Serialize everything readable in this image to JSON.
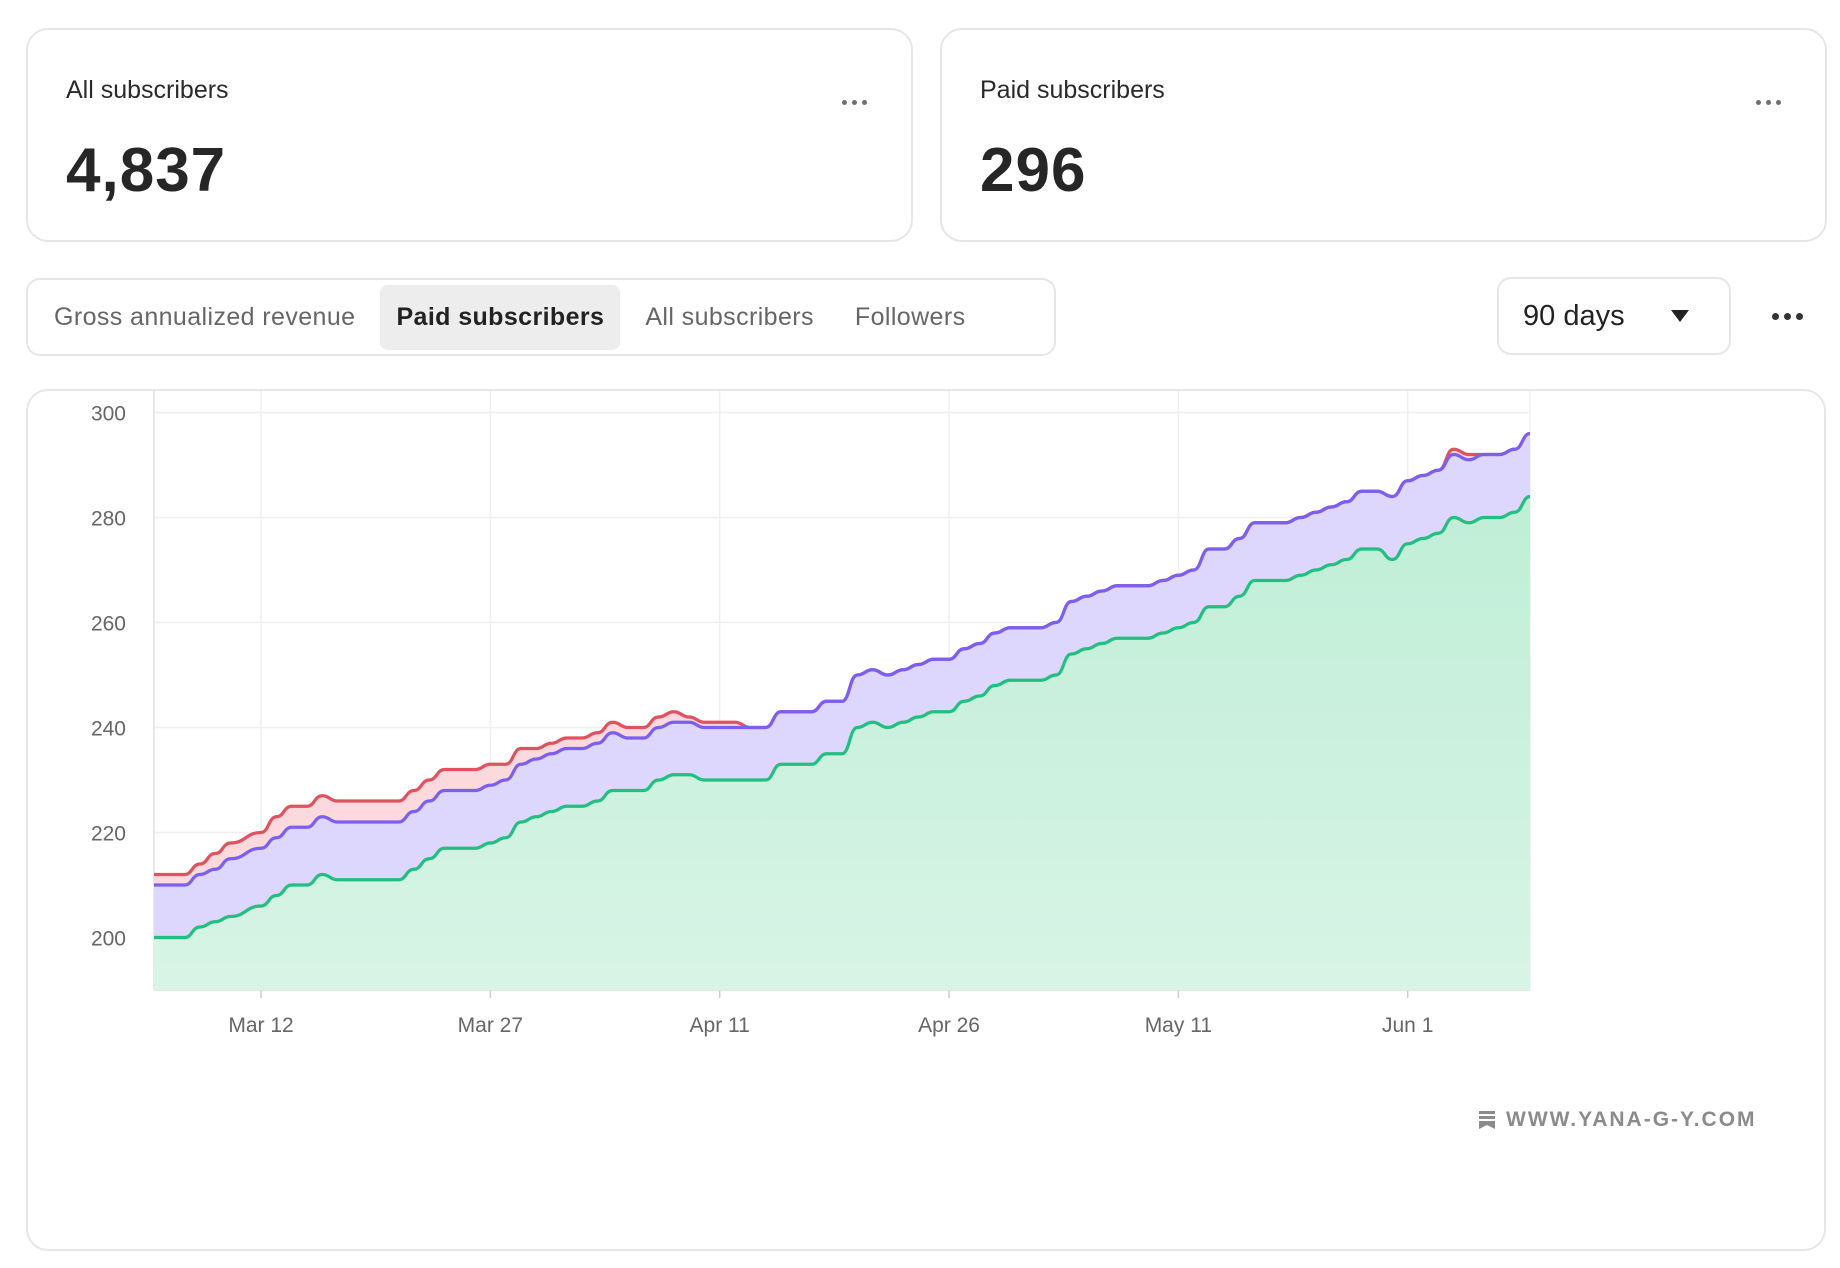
{
  "cards": [
    {
      "label": "All subscribers",
      "value": "4,837"
    },
    {
      "label": "Paid subscribers",
      "value": "296"
    }
  ],
  "tabs": [
    {
      "label": "Gross annualized revenue",
      "active": false
    },
    {
      "label": "Paid subscribers",
      "active": true
    },
    {
      "label": "All subscribers",
      "active": false
    },
    {
      "label": "Followers",
      "active": false
    }
  ],
  "range": {
    "label": "90 days"
  },
  "watermark": "WWW.YANA-G-Y.COM",
  "colors": {
    "red": "#e05260",
    "purple": "#7b5ff0",
    "green": "#22bf80"
  },
  "chart_data": {
    "type": "area",
    "x_ticks": [
      "Mar 12",
      "Mar 27",
      "Apr 11",
      "Apr 26",
      "May 11",
      "Jun 1"
    ],
    "ylim": [
      190,
      310
    ],
    "y_ticks": [
      200,
      220,
      240,
      260,
      280,
      300
    ],
    "grid": true,
    "series": [
      {
        "values": [
          [
            0,
            212
          ],
          [
            2,
            212
          ],
          [
            3,
            214
          ],
          [
            4,
            216
          ],
          [
            5,
            218
          ],
          [
            7,
            220
          ],
          [
            8,
            223
          ],
          [
            9,
            225
          ],
          [
            10,
            225
          ],
          [
            11,
            227
          ],
          [
            12,
            226
          ],
          [
            16,
            226
          ],
          [
            17,
            228
          ],
          [
            18,
            230
          ],
          [
            19,
            232
          ],
          [
            21,
            232
          ],
          [
            22,
            233
          ],
          [
            23,
            233
          ],
          [
            24,
            236
          ],
          [
            25,
            236
          ],
          [
            26,
            237
          ],
          [
            27,
            238
          ],
          [
            28,
            238
          ],
          [
            29,
            239
          ],
          [
            30,
            241
          ],
          [
            31,
            240
          ],
          [
            32,
            240
          ],
          [
            33,
            242
          ],
          [
            34,
            243
          ],
          [
            35,
            242
          ],
          [
            36,
            241
          ],
          [
            38,
            241
          ],
          [
            39,
            240
          ],
          [
            40,
            240
          ],
          [
            41,
            243
          ],
          [
            42,
            243
          ],
          [
            43,
            243
          ],
          [
            44,
            245
          ],
          [
            45,
            245
          ],
          [
            46,
            250
          ],
          [
            47,
            251
          ],
          [
            48,
            250
          ],
          [
            49,
            251
          ],
          [
            50,
            252
          ],
          [
            51,
            253
          ],
          [
            52,
            253
          ],
          [
            53,
            255
          ],
          [
            54,
            256
          ],
          [
            55,
            258
          ],
          [
            56,
            259
          ],
          [
            57,
            259
          ],
          [
            58,
            259
          ],
          [
            59,
            260
          ],
          [
            60,
            264
          ],
          [
            61,
            265
          ],
          [
            62,
            266
          ],
          [
            63,
            267
          ],
          [
            64,
            267
          ],
          [
            65,
            267
          ],
          [
            66,
            268
          ],
          [
            67,
            269
          ],
          [
            68,
            270
          ],
          [
            69,
            274
          ],
          [
            70,
            274
          ],
          [
            71,
            276
          ],
          [
            72,
            279
          ],
          [
            73,
            279
          ],
          [
            74,
            279
          ],
          [
            75,
            280
          ],
          [
            76,
            281
          ],
          [
            77,
            282
          ],
          [
            78,
            283
          ],
          [
            79,
            285
          ],
          [
            80,
            285
          ],
          [
            81,
            284
          ],
          [
            82,
            287
          ],
          [
            83,
            288
          ],
          [
            84,
            289
          ],
          [
            85,
            293
          ],
          [
            86,
            292
          ],
          [
            87,
            292
          ],
          [
            88,
            292
          ],
          [
            89,
            293
          ],
          [
            90,
            296
          ]
        ]
      },
      {
        "values": [
          [
            0,
            210
          ],
          [
            2,
            210
          ],
          [
            3,
            212
          ],
          [
            4,
            213
          ],
          [
            5,
            215
          ],
          [
            7,
            217
          ],
          [
            8,
            219
          ],
          [
            9,
            221
          ],
          [
            10,
            221
          ],
          [
            11,
            223
          ],
          [
            12,
            222
          ],
          [
            16,
            222
          ],
          [
            17,
            224
          ],
          [
            18,
            226
          ],
          [
            19,
            228
          ],
          [
            21,
            228
          ],
          [
            22,
            229
          ],
          [
            23,
            230
          ],
          [
            24,
            233
          ],
          [
            25,
            234
          ],
          [
            26,
            235
          ],
          [
            27,
            236
          ],
          [
            28,
            236
          ],
          [
            29,
            237
          ],
          [
            30,
            239
          ],
          [
            31,
            238
          ],
          [
            32,
            238
          ],
          [
            33,
            240
          ],
          [
            34,
            241
          ],
          [
            35,
            241
          ],
          [
            36,
            240
          ],
          [
            38,
            240
          ],
          [
            39,
            240
          ],
          [
            40,
            240
          ],
          [
            41,
            243
          ],
          [
            42,
            243
          ],
          [
            43,
            243
          ],
          [
            44,
            245
          ],
          [
            45,
            245
          ],
          [
            46,
            250
          ],
          [
            47,
            251
          ],
          [
            48,
            250
          ],
          [
            49,
            251
          ],
          [
            50,
            252
          ],
          [
            51,
            253
          ],
          [
            52,
            253
          ],
          [
            53,
            255
          ],
          [
            54,
            256
          ],
          [
            55,
            258
          ],
          [
            56,
            259
          ],
          [
            57,
            259
          ],
          [
            58,
            259
          ],
          [
            59,
            260
          ],
          [
            60,
            264
          ],
          [
            61,
            265
          ],
          [
            62,
            266
          ],
          [
            63,
            267
          ],
          [
            64,
            267
          ],
          [
            65,
            267
          ],
          [
            66,
            268
          ],
          [
            67,
            269
          ],
          [
            68,
            270
          ],
          [
            69,
            274
          ],
          [
            70,
            274
          ],
          [
            71,
            276
          ],
          [
            72,
            279
          ],
          [
            73,
            279
          ],
          [
            74,
            279
          ],
          [
            75,
            280
          ],
          [
            76,
            281
          ],
          [
            77,
            282
          ],
          [
            78,
            283
          ],
          [
            79,
            285
          ],
          [
            80,
            285
          ],
          [
            81,
            284
          ],
          [
            82,
            287
          ],
          [
            83,
            288
          ],
          [
            84,
            289
          ],
          [
            85,
            292
          ],
          [
            86,
            291
          ],
          [
            87,
            292
          ],
          [
            88,
            292
          ],
          [
            89,
            293
          ],
          [
            90,
            296
          ]
        ]
      },
      {
        "values": [
          [
            0,
            200
          ],
          [
            2,
            200
          ],
          [
            3,
            202
          ],
          [
            4,
            203
          ],
          [
            5,
            204
          ],
          [
            7,
            206
          ],
          [
            8,
            208
          ],
          [
            9,
            210
          ],
          [
            10,
            210
          ],
          [
            11,
            212
          ],
          [
            12,
            211
          ],
          [
            16,
            211
          ],
          [
            17,
            213
          ],
          [
            18,
            215
          ],
          [
            19,
            217
          ],
          [
            21,
            217
          ],
          [
            22,
            218
          ],
          [
            23,
            219
          ],
          [
            24,
            222
          ],
          [
            25,
            223
          ],
          [
            26,
            224
          ],
          [
            27,
            225
          ],
          [
            28,
            225
          ],
          [
            29,
            226
          ],
          [
            30,
            228
          ],
          [
            31,
            228
          ],
          [
            32,
            228
          ],
          [
            33,
            230
          ],
          [
            34,
            231
          ],
          [
            35,
            231
          ],
          [
            36,
            230
          ],
          [
            38,
            230
          ],
          [
            39,
            230
          ],
          [
            40,
            230
          ],
          [
            41,
            233
          ],
          [
            42,
            233
          ],
          [
            43,
            233
          ],
          [
            44,
            235
          ],
          [
            45,
            235
          ],
          [
            46,
            240
          ],
          [
            47,
            241
          ],
          [
            48,
            240
          ],
          [
            49,
            241
          ],
          [
            50,
            242
          ],
          [
            51,
            243
          ],
          [
            52,
            243
          ],
          [
            53,
            245
          ],
          [
            54,
            246
          ],
          [
            55,
            248
          ],
          [
            56,
            249
          ],
          [
            57,
            249
          ],
          [
            58,
            249
          ],
          [
            59,
            250
          ],
          [
            60,
            254
          ],
          [
            61,
            255
          ],
          [
            62,
            256
          ],
          [
            63,
            257
          ],
          [
            64,
            257
          ],
          [
            65,
            257
          ],
          [
            66,
            258
          ],
          [
            67,
            259
          ],
          [
            68,
            260
          ],
          [
            69,
            263
          ],
          [
            70,
            263
          ],
          [
            71,
            265
          ],
          [
            72,
            268
          ],
          [
            73,
            268
          ],
          [
            74,
            268
          ],
          [
            75,
            269
          ],
          [
            76,
            270
          ],
          [
            77,
            271
          ],
          [
            78,
            272
          ],
          [
            79,
            274
          ],
          [
            80,
            274
          ],
          [
            81,
            272
          ],
          [
            82,
            275
          ],
          [
            83,
            276
          ],
          [
            84,
            277
          ],
          [
            85,
            280
          ],
          [
            86,
            279
          ],
          [
            87,
            280
          ],
          [
            88,
            280
          ],
          [
            89,
            281
          ],
          [
            90,
            284
          ]
        ]
      }
    ]
  }
}
